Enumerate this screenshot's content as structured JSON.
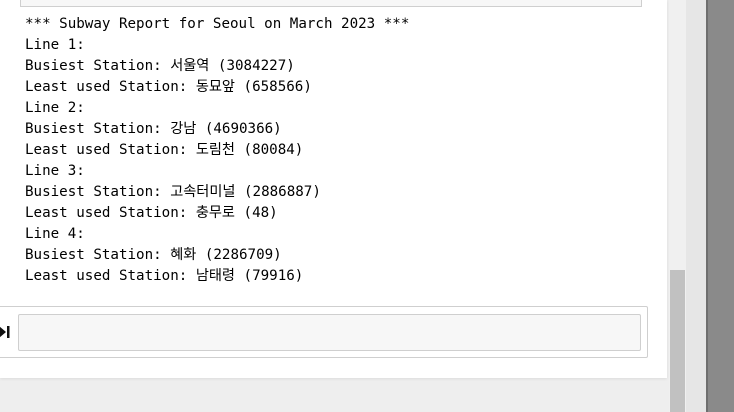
{
  "output": {
    "lines": [
      "*** Subway Report for Seoul on March 2023 ***",
      "Line 1:",
      "Busiest Station: 서울역 (3084227)",
      "Least used Station: 동묘앞 (658566)",
      "Line 2:",
      "Busiest Station: 강남 (4690366)",
      "Least used Station: 도림천 (80084)",
      "Line 3:",
      "Busiest Station: 고속터미널 (2886887)",
      "Least used Station: 충무로 (48)",
      "Line 4:",
      "Busiest Station: 혜화 (2286709)",
      "Least used Station: 남태령 (79916)"
    ]
  },
  "next_cell": {
    "value": "",
    "run_icon": "run-cell-icon"
  },
  "colors": {
    "panel_background": "#ffffff",
    "page_background": "#eeeeee",
    "cell_border": "#cfcfcf",
    "cell_input_background": "#f7f7f7",
    "scroll_thumb": "#c1c1c1"
  }
}
